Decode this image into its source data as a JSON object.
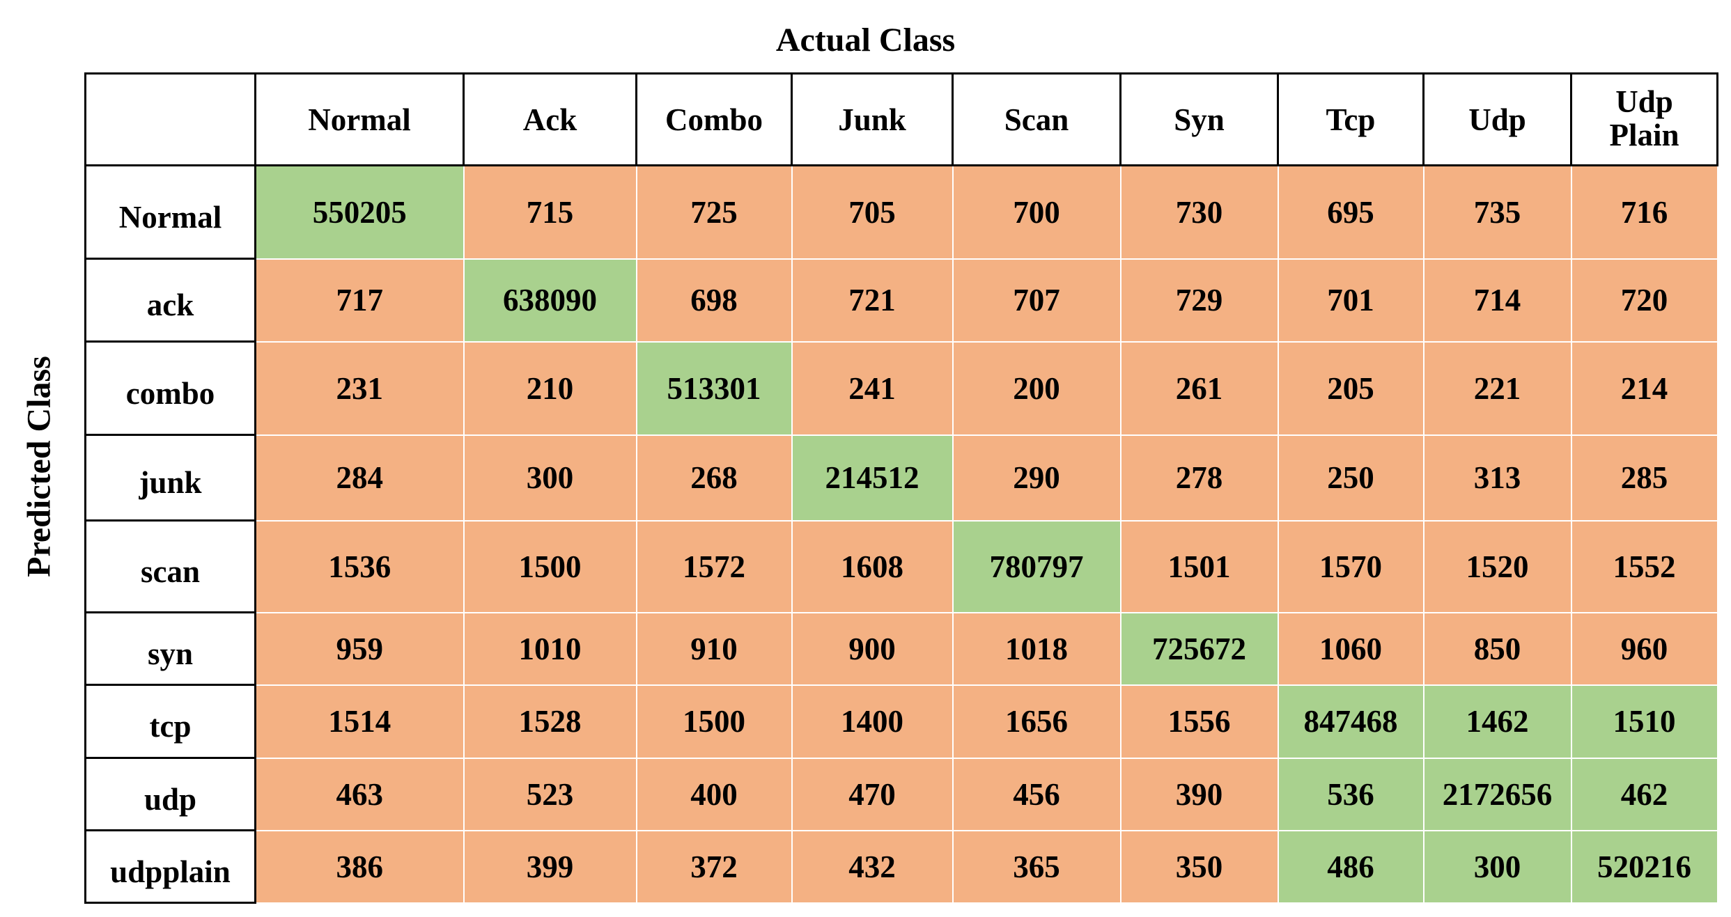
{
  "title": "Actual Class",
  "side_label": "Predicted Class",
  "table": {
    "columns": [
      "Normal",
      "Ack",
      "Combo",
      "Junk",
      "Scan",
      "Syn",
      "Tcp",
      "Udp",
      "Udp Plain"
    ],
    "rows": [
      {
        "label": "Normal",
        "cells": [
          550205,
          715,
          725,
          705,
          700,
          730,
          695,
          735,
          716
        ]
      },
      {
        "label": "ack",
        "cells": [
          717,
          638090,
          698,
          721,
          707,
          729,
          701,
          714,
          720
        ]
      },
      {
        "label": "combo",
        "cells": [
          231,
          210,
          513301,
          241,
          200,
          261,
          205,
          221,
          214
        ]
      },
      {
        "label": "junk",
        "cells": [
          284,
          300,
          268,
          214512,
          290,
          278,
          250,
          313,
          285
        ]
      },
      {
        "label": "scan",
        "cells": [
          1536,
          1500,
          1572,
          1608,
          780797,
          1501,
          1570,
          1520,
          1552
        ]
      },
      {
        "label": "syn",
        "cells": [
          959,
          1010,
          910,
          900,
          1018,
          725672,
          1060,
          850,
          960
        ]
      },
      {
        "label": "tcp",
        "cells": [
          1514,
          1528,
          1500,
          1400,
          1656,
          1556,
          847468,
          1462,
          1510
        ]
      },
      {
        "label": "udp",
        "cells": [
          463,
          523,
          400,
          470,
          456,
          390,
          536,
          2172656,
          462
        ]
      },
      {
        "label": "udpplain",
        "cells": [
          386,
          399,
          372,
          432,
          365,
          350,
          486,
          300,
          520216
        ]
      }
    ]
  }
}
